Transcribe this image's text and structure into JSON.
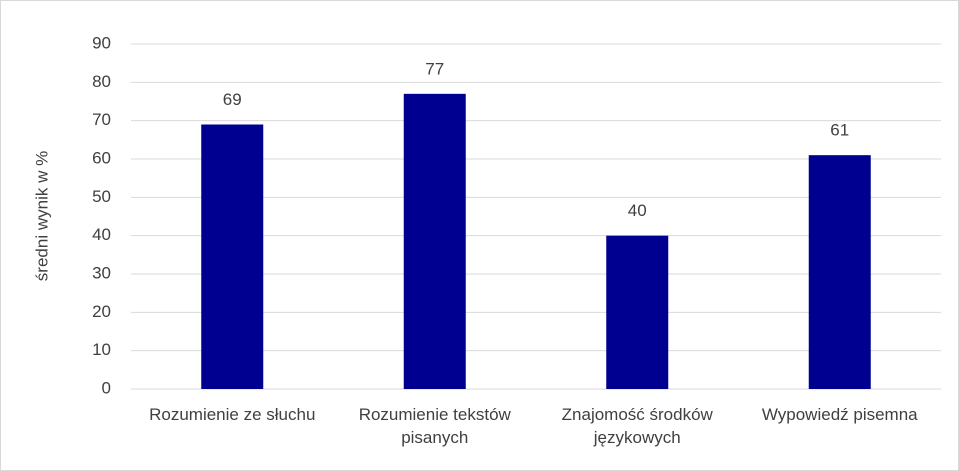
{
  "chart_data": {
    "type": "bar",
    "y_label": "średni wynik w %",
    "categories": [
      "Rozumienie ze słuchu",
      "Rozumienie tekstów pisanych",
      "Znajomość środków językowych",
      "Wypowiedź pisemna"
    ],
    "values": [
      69,
      77,
      40,
      61
    ],
    "color": "#000090",
    "ylim": [
      0,
      90
    ],
    "yticks": [
      0,
      10,
      20,
      30,
      40,
      50,
      60,
      70,
      80,
      90
    ],
    "grid": true
  }
}
